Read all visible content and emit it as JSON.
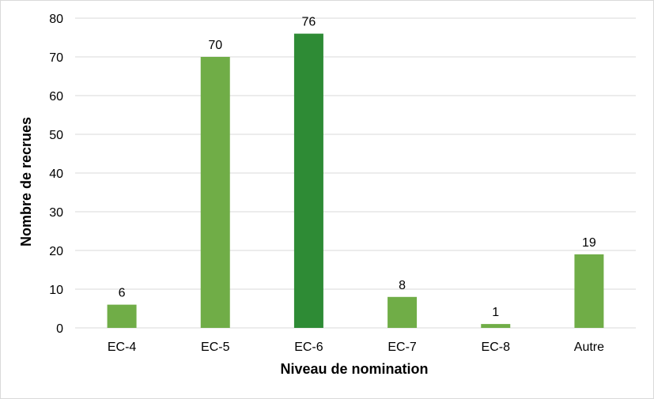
{
  "chart_data": {
    "type": "bar",
    "categories": [
      "EC-4",
      "EC-5",
      "EC-6",
      "EC-7",
      "EC-8",
      "Autre"
    ],
    "values": [
      6,
      70,
      76,
      8,
      1,
      19
    ],
    "bar_colors": [
      "#70ad47",
      "#70ad47",
      "#2e8b35",
      "#70ad47",
      "#70ad47",
      "#70ad47"
    ],
    "data_labels": [
      "6",
      "70",
      "76",
      "8",
      "1",
      "19"
    ],
    "xlabel": "Niveau de nomination",
    "ylabel": "Nombre de recrues",
    "ylim": [
      0,
      80
    ],
    "yticks": [
      0,
      10,
      20,
      30,
      40,
      50,
      60,
      70,
      80
    ],
    "ytick_labels": [
      "0",
      "10",
      "20",
      "30",
      "40",
      "50",
      "60",
      "70",
      "80"
    ],
    "grid": true,
    "legend": "none",
    "gridline_color": "#d9d9d9"
  }
}
